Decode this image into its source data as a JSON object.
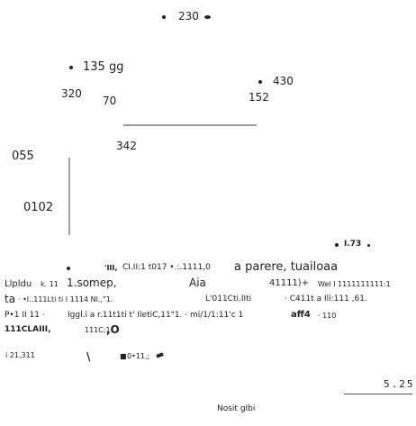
{
  "labels": {
    "v230": "230",
    "v135": "135 gg",
    "v430": "430",
    "v320": "320",
    "v70": "70",
    "v152": "152",
    "v342": "342",
    "v055": "055",
    "v0102": "0102",
    "v73": "73"
  },
  "text_lines": {
    "line1_a": "CI.II:1 t017 •.:.1111,0",
    "line1_b": "a parere, tuailoaa",
    "line2_a": "Llpldu",
    "line2_b": "k. 11",
    "line2_c": "1.somep,",
    "line2_d": "Aia",
    "line2_e": "41111)+",
    "line2_f": "Wel I 1111111111:1",
    "line3_a": "ta",
    "line3_b": "· •I..111Lti ti I 1114 NI.,\"1.",
    "line3_c": "L'011Cti.IIti",
    "line3_d": "· C411t a Ili:111 ,61.",
    "line4_a": "P•1 II 11 ·",
    "line4_b": "Iggl.i a r.11t1ti t' IletiC,11\"1. · mi/1/1:11'c 1",
    "line4_c": "aff4",
    "line4_d": "· 110",
    "line5_a": "111CLAIII,",
    "line5_b": "111C;1",
    "line5_c": ",O",
    "line6_a": "i 21,311",
    "line6_b": "\\",
    "line6_c": "0•11,;"
  },
  "footer": {
    "value": "5.25",
    "caption": "Nosit gIbi"
  }
}
